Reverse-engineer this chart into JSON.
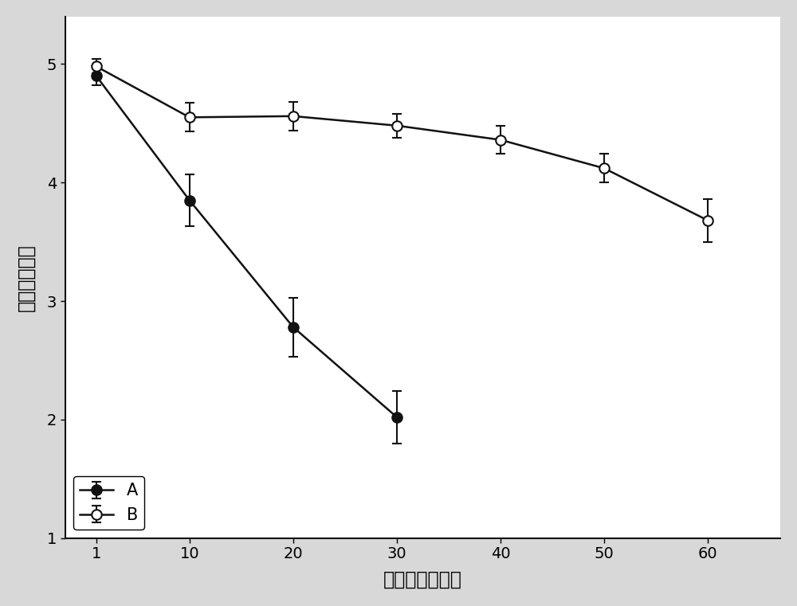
{
  "x": [
    1,
    10,
    20,
    30,
    40,
    50,
    60
  ],
  "series_A": {
    "y": [
      4.9,
      3.85,
      2.78,
      2.02
    ],
    "x": [
      1,
      10,
      20,
      30
    ],
    "yerr": [
      0.08,
      0.22,
      0.25,
      0.22
    ],
    "label": "A",
    "marker": "o",
    "marker_face": "#111111",
    "marker_edge": "#111111",
    "line_color": "#111111"
  },
  "series_B": {
    "y": [
      4.98,
      4.55,
      4.56,
      4.48,
      4.36,
      4.12,
      3.68
    ],
    "x": [
      1,
      10,
      20,
      30,
      40,
      50,
      60
    ],
    "yerr": [
      0.06,
      0.12,
      0.12,
      0.1,
      0.12,
      0.12,
      0.18
    ],
    "label": "B",
    "marker": "o",
    "marker_face": "#ffffff",
    "marker_edge": "#111111",
    "line_color": "#111111"
  },
  "xlabel": "储藏天数（天）",
  "ylabel": "总体感官质量",
  "xlim": [
    -2,
    67
  ],
  "ylim": [
    1,
    5.4
  ],
  "yticks": [
    1,
    2,
    3,
    4,
    5
  ],
  "xticks": [
    1,
    10,
    20,
    30,
    40,
    50,
    60
  ],
  "marker_size": 9,
  "line_width": 1.8,
  "capsize": 4,
  "elinewidth": 1.5,
  "legend_loc": "lower left",
  "font_size": 15,
  "label_font_size": 17,
  "tick_font_size": 14,
  "background_color": "#ffffff",
  "fig_bg_color": "#d8d8d8"
}
